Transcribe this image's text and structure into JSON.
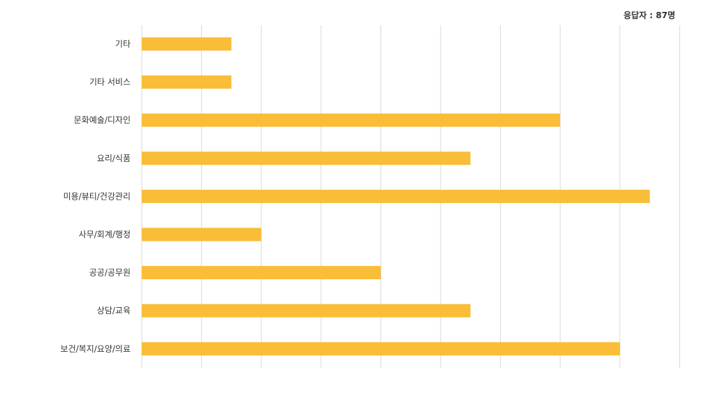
{
  "header": {
    "respondents": "응답자 : 87명"
  },
  "colors": {
    "bar": "#f9bd38",
    "grid": "#d9d9d9",
    "text": "#333333",
    "background": "#ffffff"
  },
  "chart_data": {
    "type": "bar",
    "orientation": "horizontal",
    "title": "",
    "xlabel": "",
    "ylabel": "",
    "grid": true,
    "x_tick_labels_shown": false,
    "xlim": [
      0,
      18
    ],
    "categories": [
      "기타",
      "기타 서비스",
      "문화예술/디자인",
      "요리/식품",
      "미용/뷰티/건강관리",
      "사무/회계/행정",
      "공공/공무원",
      "상담/교육",
      "보건/복지/요양/의료"
    ],
    "values": [
      3,
      3,
      14,
      11,
      17,
      4,
      8,
      11,
      16
    ]
  }
}
